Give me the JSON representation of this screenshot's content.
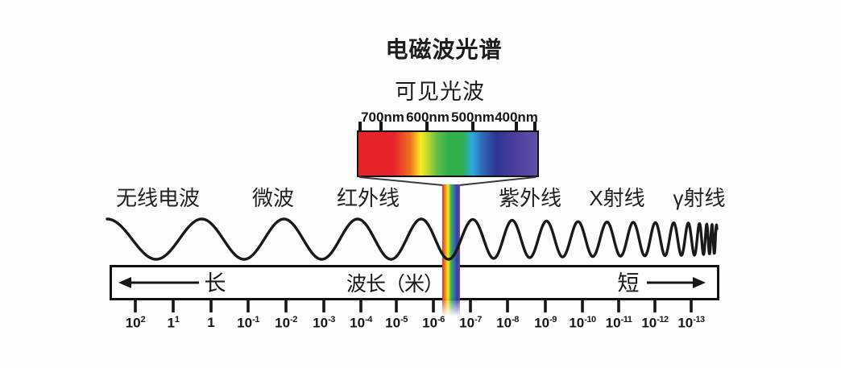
{
  "title": "电磁波光谱",
  "subtitle": "可见光波",
  "visible_spectrum": {
    "wavelength_ticks": [
      "700nm",
      "600nm",
      "500nm",
      "400nm"
    ]
  },
  "em_bands": [
    {
      "name": "radio-waves",
      "label": "无线电波"
    },
    {
      "name": "microwave",
      "label": "微波"
    },
    {
      "name": "infrared",
      "label": "红外线"
    },
    {
      "name": "ultraviolet",
      "label": "紫外线"
    },
    {
      "name": "x-ray",
      "label": "X射线"
    },
    {
      "name": "gamma-ray",
      "label": "γ射线"
    }
  ],
  "axis": {
    "direction_long": "长",
    "title": "波长（米）",
    "direction_short": "短",
    "tick_labels": [
      {
        "base": "10",
        "exp": "2"
      },
      {
        "base": "1",
        "exp": "1"
      },
      {
        "base": "1",
        "exp": ""
      },
      {
        "base": "10",
        "exp": "-1"
      },
      {
        "base": "10",
        "exp": "-2"
      },
      {
        "base": "10",
        "exp": "-3"
      },
      {
        "base": "10",
        "exp": "-4"
      },
      {
        "base": "10",
        "exp": "-5"
      },
      {
        "base": "10",
        "exp": "-6"
      },
      {
        "base": "10",
        "exp": "-7"
      },
      {
        "base": "10",
        "exp": "-8"
      },
      {
        "base": "10",
        "exp": "-9"
      },
      {
        "base": "10",
        "exp": "-10"
      },
      {
        "base": "10",
        "exp": "-11"
      },
      {
        "base": "10",
        "exp": "-12"
      },
      {
        "base": "10",
        "exp": "-13"
      }
    ]
  },
  "colors": {
    "ink": "#1d1d1d",
    "spectrum_gradient": [
      "#e8242b",
      "#e8242b",
      "#ef7123",
      "#f9ed21",
      "#64bd45",
      "#2fb04c",
      "#2fb04c",
      "#2aa9e0",
      "#2d6cb5",
      "#2d3494",
      "#4a3e9c",
      "#5e51a8"
    ],
    "beam_gradient": [
      "#d8342a",
      "#ef7d22",
      "#f7ec1f",
      "#3fae49",
      "#2f6fba",
      "#3b3a96",
      "#6a51a2"
    ]
  }
}
